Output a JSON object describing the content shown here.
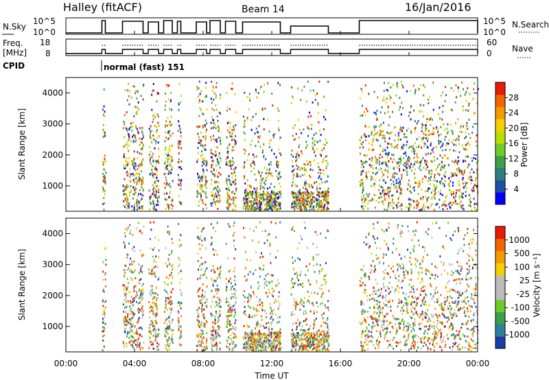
{
  "header": {
    "station": "Halley (fitACF)",
    "beam": "Beam 14",
    "date": "16/Jan/2016"
  },
  "panels": {
    "nsky": {
      "left_label": "N.Sky",
      "right_label": "N.Search",
      "left_ticks": [
        "10^5",
        "10^0"
      ],
      "right_ticks": [
        "10^5",
        "10^0"
      ]
    },
    "freq": {
      "left_label_1": "Freq.",
      "left_label_2": "[MHz]",
      "right_label": "Nave",
      "left_ticks": [
        "18",
        "8"
      ],
      "right_ticks": [
        "60",
        "0"
      ]
    },
    "cpid": {
      "label": "CPID",
      "program": "normal (fast) 151"
    },
    "power": {
      "ylabel": "Slant Range [km]",
      "colorbar_label": "Power [dB]",
      "colorbar_ticks": [
        "28",
        "24",
        "20",
        "16",
        "12",
        "8",
        "4"
      ],
      "colors": [
        "#0000ff",
        "#1f4fa3",
        "#2f7f7f",
        "#3aa04a",
        "#6ccc2a",
        "#b8e000",
        "#f4d000",
        "#f49a00",
        "#f26400",
        "#e81a00"
      ]
    },
    "velocity": {
      "ylabel": "Slant Range [km]",
      "colorbar_label": "Velocity [m s⁻¹]",
      "colorbar_ticks": [
        "1000",
        "500",
        "100",
        "25",
        "-25",
        "-100",
        "-500",
        "-1000"
      ],
      "colors": [
        "#1a3ca8",
        "#2f7f9f",
        "#3aa04a",
        "#6ccc2a",
        "#bcbcbc",
        "#bcbcbc",
        "#f4d000",
        "#f49a00",
        "#f26400",
        "#e81a00"
      ]
    }
  },
  "chart_data": {
    "type": "heatmap",
    "x_unit": "hours UT",
    "xlabel": "Time UT",
    "xlim": [
      0,
      24
    ],
    "x_ticks": [
      "00:00",
      "04:00",
      "08:00",
      "12:00",
      "16:00",
      "20:00",
      "00:00"
    ],
    "ylabel": "Slant Range [km]",
    "ylim": [
      180,
      4500
    ],
    "y_ticks": [
      1000,
      2000,
      3000,
      4000
    ],
    "data_intervals": [
      [
        2.1,
        2.3
      ],
      [
        3.3,
        4.5
      ],
      [
        4.8,
        5.4
      ],
      [
        5.7,
        6.2
      ],
      [
        6.5,
        6.7
      ],
      [
        7.6,
        8.2
      ],
      [
        8.4,
        9.0
      ],
      [
        9.3,
        9.9
      ],
      [
        10.3,
        12.5
      ],
      [
        13.1,
        15.3
      ],
      [
        17.1,
        24
      ]
    ],
    "nave_level": 0.35,
    "power_range": [
      0,
      30
    ],
    "velocity_range": [
      -1000,
      1000
    ]
  }
}
